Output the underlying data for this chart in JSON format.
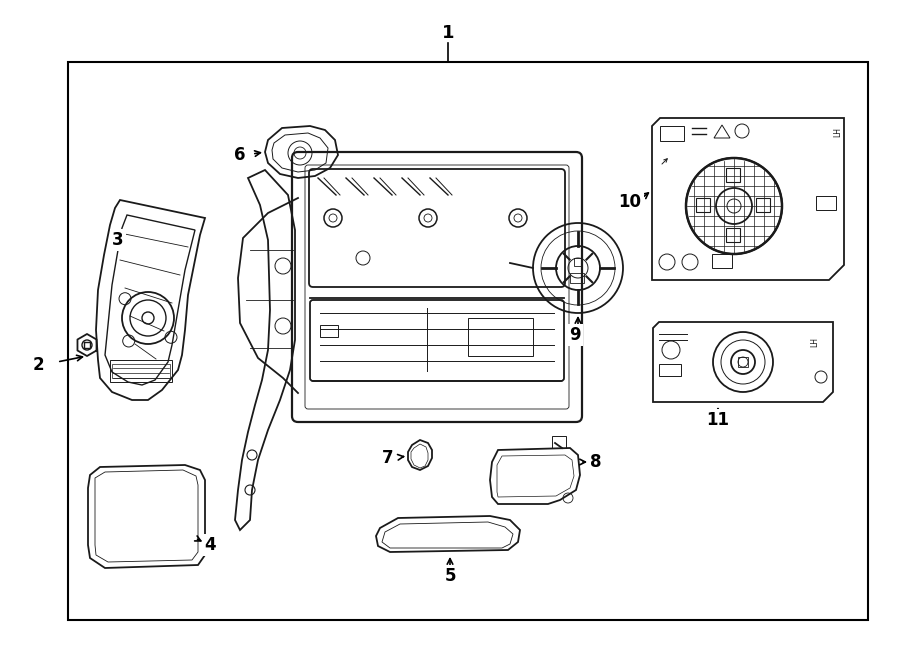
{
  "bg": "#ffffff",
  "lc": "#1a1a1a",
  "lw": 1.3,
  "fig_w": 9.0,
  "fig_h": 6.62,
  "dpi": 100
}
